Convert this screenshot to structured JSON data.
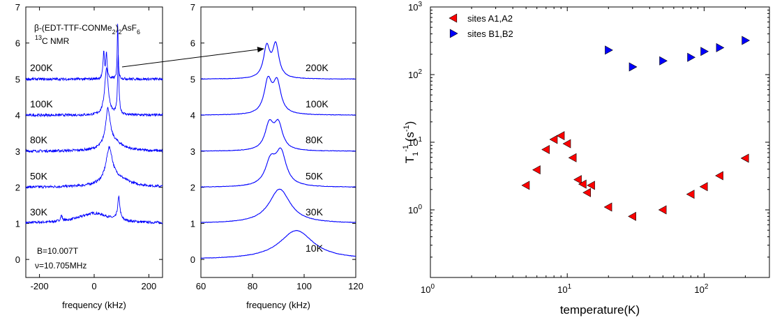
{
  "chart_data": [
    {
      "type": "line",
      "title": "β-(EDT-TTF-CONMe2)2AsF6 13C NMR",
      "title_parts": {
        "beta": "β-(EDT-TTF-CONMe",
        "sub_2a": "2",
        "close": ")",
        "sub_2b": "2",
        "anion": "AsF",
        "sub_6": "6",
        "iso_sup": "13",
        "nucleus": "C NMR"
      },
      "xlabel": "frequency (kHz)",
      "ylabel": "",
      "xlim": [
        -250,
        250
      ],
      "ylim": [
        -0.5,
        7
      ],
      "xticks": [
        -200,
        0,
        200
      ],
      "yticks": [
        0,
        1,
        2,
        3,
        4,
        5,
        6,
        7
      ],
      "annotations": [
        "B=10.007T",
        "ν=10.705MHz"
      ],
      "color": "#0000ff",
      "series": [
        {
          "label": "30K",
          "offset": 1,
          "peaks": [
            [
              -120,
              0.15,
              4
            ],
            [
              0,
              0.28,
              70
            ],
            [
              90,
              0.62,
              5
            ]
          ]
        },
        {
          "label": "50K",
          "offset": 2,
          "peaks": [
            [
              55,
              0.9,
              14
            ],
            [
              80,
              0.25,
              55
            ]
          ]
        },
        {
          "label": "80K",
          "offset": 3,
          "peaks": [
            [
              50,
              1.0,
              10
            ],
            [
              70,
              0.25,
              40
            ]
          ]
        },
        {
          "label": "100K",
          "offset": 4,
          "peaks": [
            [
              45,
              1.3,
              8
            ],
            [
              88,
              1.6,
              3
            ]
          ]
        },
        {
          "label": "200K",
          "offset": 5,
          "peaks": [
            [
              35,
              0.75,
              3
            ],
            [
              45,
              0.7,
              3
            ],
            [
              86,
              1.55,
              2
            ]
          ]
        }
      ]
    },
    {
      "type": "line",
      "xlabel": "frequency (kHz)",
      "ylabel": "",
      "xlim": [
        60,
        120
      ],
      "ylim": [
        -0.5,
        7
      ],
      "xticks": [
        60,
        80,
        100,
        120
      ],
      "yticks": [
        0,
        1,
        2,
        3,
        4,
        5,
        6,
        7
      ],
      "color": "#0000ff",
      "series": [
        {
          "label": "10K",
          "offset": 0,
          "peaks": [
            [
              97,
              0.8,
              8
            ]
          ]
        },
        {
          "label": "30K",
          "offset": 1,
          "peaks": [
            [
              90.5,
              0.95,
              5
            ]
          ]
        },
        {
          "label": "50K",
          "offset": 2,
          "peaks": [
            [
              87,
              0.65,
              2.5
            ],
            [
              91,
              0.9,
              2.5
            ]
          ]
        },
        {
          "label": "80K",
          "offset": 3,
          "peaks": [
            [
              86.5,
              0.7,
              2
            ],
            [
              90,
              0.7,
              2
            ]
          ]
        },
        {
          "label": "100K",
          "offset": 4,
          "peaks": [
            [
              86,
              0.9,
              1.8
            ],
            [
              89.5,
              0.85,
              1.8
            ]
          ]
        },
        {
          "label": "200K",
          "offset": 5,
          "peaks": [
            [
              85.5,
              0.85,
              1.5
            ],
            [
              89,
              0.9,
              1.5
            ]
          ]
        }
      ]
    },
    {
      "type": "scatter",
      "xlabel": "temperature(K)",
      "ylabel_parts": {
        "t": "T",
        "sub": "1",
        "sup": "-1",
        "unit": " (s",
        "unit_sup": "-1",
        "close": ")"
      },
      "xscale": "log",
      "yscale": "log",
      "xlim": [
        1,
        300
      ],
      "ylim": [
        0.1,
        1000
      ],
      "xticks": [
        {
          "value": 1,
          "label": "10",
          "sup": "0"
        },
        {
          "value": 10,
          "label": "10",
          "sup": "1"
        },
        {
          "value": 100,
          "label": "10",
          "sup": "2"
        }
      ],
      "yticks": [
        {
          "value": 1,
          "label": "10",
          "sup": "0"
        },
        {
          "value": 10,
          "label": "10",
          "sup": "1"
        },
        {
          "value": 100,
          "label": "10",
          "sup": "2"
        },
        {
          "value": 1000,
          "label": "10",
          "sup": "3"
        }
      ],
      "legend_position": "top-left",
      "series": [
        {
          "name": "sites A1,A2",
          "marker": "left-triangle",
          "color": "#ff0000",
          "x": [
            5,
            6,
            7,
            8,
            9,
            10,
            11,
            12,
            13,
            14,
            15,
            20,
            30,
            50,
            80,
            100,
            130,
            200
          ],
          "y": [
            2.3,
            3.9,
            7.8,
            11,
            12.5,
            9.5,
            5.9,
            2.8,
            2.4,
            1.8,
            2.3,
            1.1,
            0.8,
            1.0,
            1.7,
            2.2,
            3.2,
            5.8
          ]
        },
        {
          "name": "sites B1,B2",
          "marker": "right-triangle",
          "color": "#0000ff",
          "x": [
            20,
            30,
            50,
            80,
            100,
            130,
            200
          ],
          "y": [
            230,
            130,
            160,
            180,
            220,
            250,
            320
          ]
        }
      ]
    }
  ]
}
